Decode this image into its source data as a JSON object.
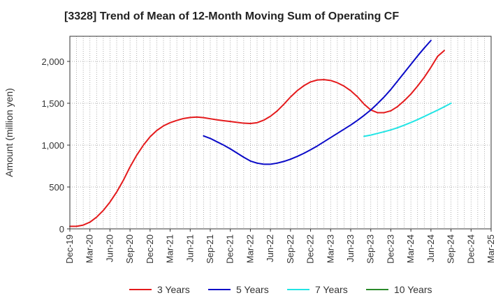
{
  "chart_data": {
    "type": "line",
    "title": "[3328]  Trend of Mean of 12-Month Moving Sum of Operating CF",
    "xlabel": "",
    "ylabel": "Amount (million yen)",
    "ylim": [
      0,
      2300
    ],
    "yticks": [
      0,
      500,
      1000,
      1500,
      2000
    ],
    "ytick_labels": [
      "0",
      "500",
      "1,000",
      "1,500",
      "2,000"
    ],
    "x_range": [
      0,
      63
    ],
    "xtick_labels": [
      "Dec-19",
      "Mar-20",
      "Jun-20",
      "Sep-20",
      "Dec-20",
      "Mar-21",
      "Jun-21",
      "Sep-21",
      "Dec-21",
      "Mar-22",
      "Jun-22",
      "Sep-22",
      "Dec-22",
      "Mar-23",
      "Jun-23",
      "Sep-23",
      "Dec-23",
      "Mar-24",
      "Jun-24",
      "Sep-24",
      "Dec-24",
      "Mar-25"
    ],
    "grid": true,
    "legend_position": "bottom",
    "series": [
      {
        "name": "3 Years",
        "color": "#e41a1c",
        "points": [
          [
            0,
            30
          ],
          [
            1,
            30
          ],
          [
            2,
            45
          ],
          [
            3,
            80
          ],
          [
            4,
            140
          ],
          [
            5,
            220
          ],
          [
            6,
            320
          ],
          [
            7,
            440
          ],
          [
            8,
            580
          ],
          [
            9,
            740
          ],
          [
            10,
            880
          ],
          [
            11,
            1000
          ],
          [
            12,
            1100
          ],
          [
            13,
            1175
          ],
          [
            14,
            1230
          ],
          [
            15,
            1268
          ],
          [
            16,
            1295
          ],
          [
            17,
            1318
          ],
          [
            18,
            1330
          ],
          [
            19,
            1335
          ],
          [
            20,
            1328
          ],
          [
            21,
            1315
          ],
          [
            22,
            1302
          ],
          [
            23,
            1292
          ],
          [
            24,
            1282
          ],
          [
            25,
            1272
          ],
          [
            26,
            1262
          ],
          [
            27,
            1258
          ],
          [
            28,
            1268
          ],
          [
            29,
            1298
          ],
          [
            30,
            1345
          ],
          [
            31,
            1408
          ],
          [
            32,
            1488
          ],
          [
            33,
            1575
          ],
          [
            34,
            1650
          ],
          [
            35,
            1710
          ],
          [
            36,
            1755
          ],
          [
            37,
            1778
          ],
          [
            38,
            1782
          ],
          [
            39,
            1772
          ],
          [
            40,
            1745
          ],
          [
            41,
            1705
          ],
          [
            42,
            1650
          ],
          [
            43,
            1578
          ],
          [
            44,
            1490
          ],
          [
            45,
            1420
          ],
          [
            46,
            1388
          ],
          [
            47,
            1388
          ],
          [
            48,
            1410
          ],
          [
            49,
            1460
          ],
          [
            50,
            1530
          ],
          [
            51,
            1610
          ],
          [
            52,
            1705
          ],
          [
            53,
            1810
          ],
          [
            54,
            1930
          ],
          [
            55,
            2060
          ],
          [
            56,
            2130
          ]
        ]
      },
      {
        "name": "5 Years",
        "color": "#0a0ac8",
        "points": [
          [
            20,
            1110
          ],
          [
            21,
            1080
          ],
          [
            22,
            1040
          ],
          [
            23,
            1000
          ],
          [
            24,
            955
          ],
          [
            25,
            905
          ],
          [
            26,
            855
          ],
          [
            27,
            810
          ],
          [
            28,
            785
          ],
          [
            29,
            772
          ],
          [
            30,
            772
          ],
          [
            31,
            785
          ],
          [
            32,
            805
          ],
          [
            33,
            832
          ],
          [
            34,
            865
          ],
          [
            35,
            902
          ],
          [
            36,
            945
          ],
          [
            37,
            990
          ],
          [
            38,
            1040
          ],
          [
            39,
            1090
          ],
          [
            40,
            1140
          ],
          [
            41,
            1190
          ],
          [
            42,
            1240
          ],
          [
            43,
            1295
          ],
          [
            44,
            1355
          ],
          [
            45,
            1420
          ],
          [
            46,
            1495
          ],
          [
            47,
            1575
          ],
          [
            48,
            1665
          ],
          [
            49,
            1765
          ],
          [
            50,
            1865
          ],
          [
            51,
            1965
          ],
          [
            52,
            2065
          ],
          [
            53,
            2160
          ],
          [
            54,
            2250
          ]
        ]
      },
      {
        "name": "7 Years",
        "color": "#22e5e5",
        "points": [
          [
            44,
            1105
          ],
          [
            45,
            1120
          ],
          [
            46,
            1140
          ],
          [
            47,
            1160
          ],
          [
            48,
            1182
          ],
          [
            49,
            1208
          ],
          [
            50,
            1238
          ],
          [
            51,
            1270
          ],
          [
            52,
            1305
          ],
          [
            53,
            1342
          ],
          [
            54,
            1380
          ],
          [
            55,
            1418
          ],
          [
            56,
            1458
          ],
          [
            57,
            1500
          ]
        ]
      },
      {
        "name": "10 Years",
        "color": "#2a8a2a",
        "points": []
      }
    ]
  }
}
